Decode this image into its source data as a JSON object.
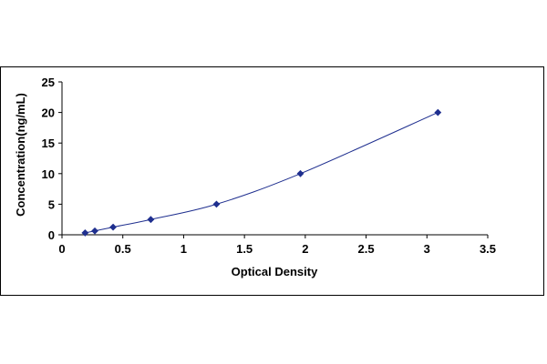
{
  "chart_data": {
    "type": "scatter",
    "title": "",
    "xlabel": "Optical Density",
    "ylabel": "Concentration(ng/mL)",
    "xlim": [
      0,
      3.5
    ],
    "ylim": [
      0,
      25
    ],
    "x_ticks": [
      "0",
      "0.5",
      "1",
      "1.5",
      "2",
      "2.5",
      "3",
      "3.5"
    ],
    "y_ticks": [
      "0",
      "5",
      "10",
      "15",
      "20",
      "25"
    ],
    "grid": false,
    "legend": "none",
    "series": [
      {
        "x": [
          0.19,
          0.27,
          0.42,
          0.73,
          1.27,
          1.96,
          3.09
        ],
        "y": [
          0.31,
          0.63,
          1.25,
          2.5,
          5,
          10,
          20
        ],
        "marker": "diamond",
        "fitted_line": true,
        "color": "#1f2f8f"
      }
    ]
  }
}
